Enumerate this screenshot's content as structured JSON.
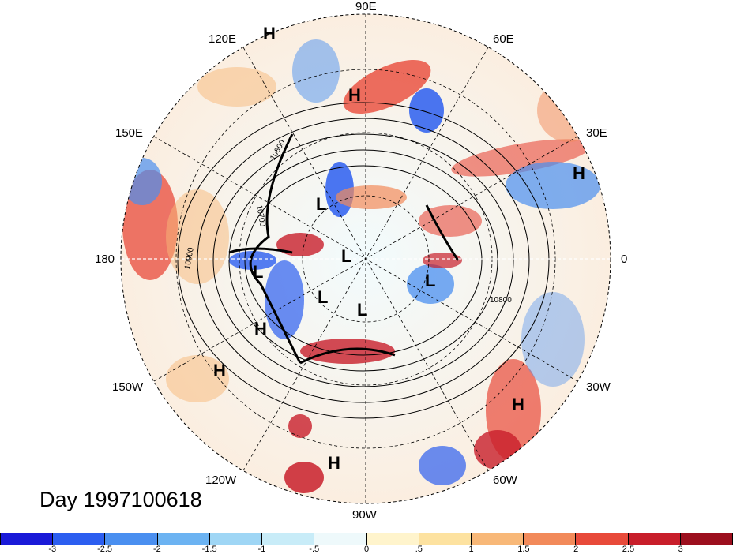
{
  "title": "Day 1997100618",
  "longitude_labels": [
    {
      "key": "90E",
      "text": "90E"
    },
    {
      "key": "60E",
      "text": "60E"
    },
    {
      "key": "30E",
      "text": "30E"
    },
    {
      "key": "0",
      "text": "0"
    },
    {
      "key": "30W",
      "text": "30W"
    },
    {
      "key": "60W",
      "text": "60W"
    },
    {
      "key": "90W",
      "text": "90W"
    },
    {
      "key": "120W",
      "text": "120W"
    },
    {
      "key": "150W",
      "text": "150W"
    },
    {
      "key": "180",
      "text": "180"
    },
    {
      "key": "150E",
      "text": "150E"
    },
    {
      "key": "120E",
      "text": "120E"
    }
  ],
  "pressure_centers": {
    "high": "H",
    "low": "L"
  },
  "contour_labels": [
    "10800",
    "10700",
    "10900",
    "10800"
  ],
  "colorbar": {
    "ticks": [
      "-3",
      "-2.5",
      "-2",
      "-1.5",
      "-1",
      "-.5",
      "0",
      ".5",
      "1",
      "1.5",
      "2",
      "2.5",
      "3"
    ],
    "colors": [
      "#1a1ad8",
      "#2c5ef0",
      "#4a8ff0",
      "#6cb3f2",
      "#9fd6f5",
      "#c8ecf8",
      "#eef9fb",
      "#fff4cc",
      "#fde2a0",
      "#f8b878",
      "#f28a5a",
      "#e84a3a",
      "#c81e2a",
      "#9c0f1e"
    ]
  }
}
